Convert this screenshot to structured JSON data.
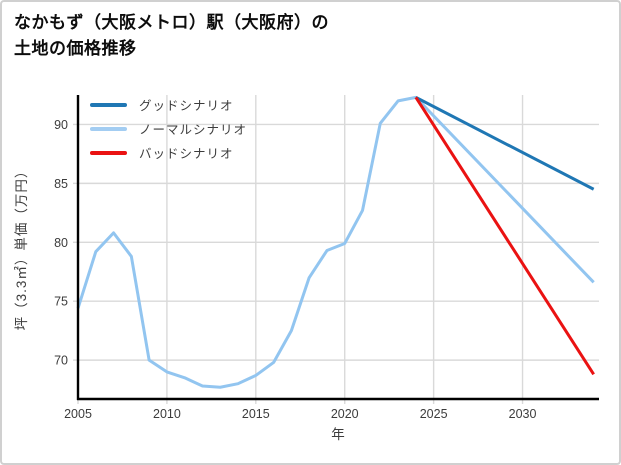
{
  "title": {
    "line1": "なかもず（大阪メトロ）駅（大阪府）の",
    "line2": "土地の価格推移"
  },
  "legend": {
    "items": [
      {
        "label": "グッドシナリオ",
        "color": "#1f77b4"
      },
      {
        "label": "ノーマルシナリオ",
        "color": "#a3cdf2"
      },
      {
        "label": "バッドシナリオ",
        "color": "#ea1212"
      }
    ]
  },
  "axes": {
    "xlabel": "年",
    "ylabel": "坪（3.3㎡）単価（万円）"
  },
  "colors": {
    "grid": "#d9d9d9",
    "spine": "#000000",
    "tick_text": "#3c3c3c",
    "good": "#1f77b4",
    "normal": "#a3cdf2",
    "normal_curve": "#92c5f0",
    "bad": "#ea1212"
  },
  "chart_data": {
    "type": "line",
    "title": "なかもず（大阪メトロ）駅（大阪府）の土地の価格推移",
    "xlabel": "年",
    "ylabel": "坪（3.3㎡）単価（万円）",
    "xlim": [
      2005,
      2034.3
    ],
    "ylim": [
      66.7,
      92.5
    ],
    "xticks": [
      2005,
      2010,
      2015,
      2020,
      2025,
      2030
    ],
    "yticks": [
      70,
      75,
      80,
      85,
      90
    ],
    "grid": true,
    "legend_position": "upper-left",
    "series": [
      {
        "name": "ノーマルシナリオ",
        "note": "historical 2005-2024 then normal-scenario projection to 2034",
        "x": [
          2005,
          2006,
          2007,
          2008,
          2009,
          2010,
          2011,
          2012,
          2013,
          2014,
          2015,
          2016,
          2017,
          2018,
          2019,
          2020,
          2021,
          2022,
          2023,
          2024,
          2034
        ],
        "values": [
          74.4,
          79.2,
          80.8,
          78.8,
          70.0,
          69.0,
          68.5,
          67.8,
          67.7,
          68.0,
          68.7,
          69.8,
          72.5,
          77.0,
          79.3,
          79.9,
          82.7,
          90.1,
          92.0,
          92.3,
          76.6
        ]
      },
      {
        "name": "グッドシナリオ",
        "x": [
          2024,
          2034
        ],
        "values": [
          92.3,
          84.5
        ]
      },
      {
        "name": "バッドシナリオ",
        "x": [
          2024,
          2034
        ],
        "values": [
          92.3,
          68.8
        ]
      }
    ]
  }
}
